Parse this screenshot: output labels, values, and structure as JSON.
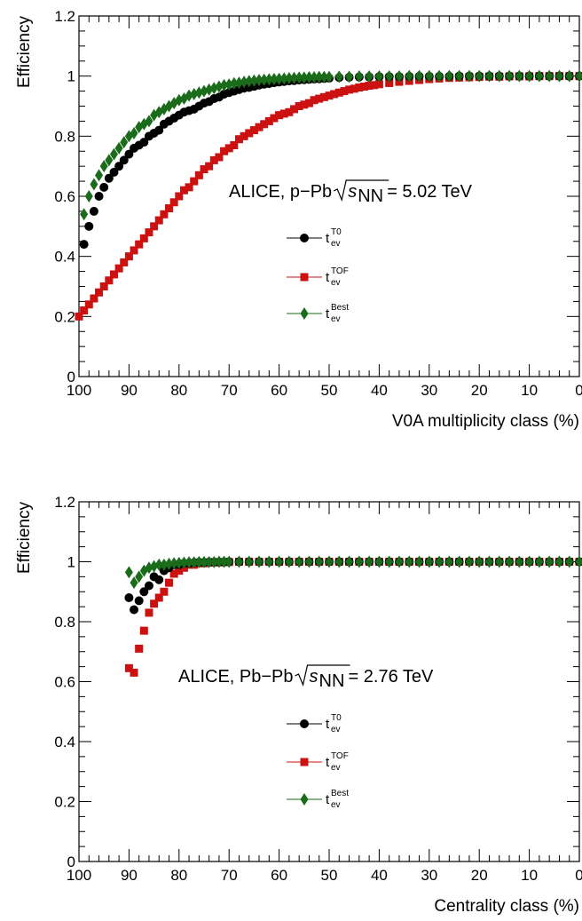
{
  "chart_data": [
    {
      "type": "scatter",
      "annotation": {
        "prefix": "ALICE, p−Pb ",
        "sqrt": "s",
        "sub": "NN",
        "suffix": " = 5.02 TeV"
      },
      "xlabel": "V0A multiplicity class (%)",
      "ylabel": "Efficiency",
      "xlim": [
        100,
        0
      ],
      "ylim": [
        0,
        1.2
      ],
      "x_reversed": true,
      "x_ticks": [
        "100",
        "90",
        "80",
        "70",
        "60",
        "50",
        "40",
        "30",
        "20",
        "10",
        "0"
      ],
      "y_ticks": [
        "0",
        "0.2",
        "0.4",
        "0.6",
        "0.8",
        "1",
        "1.2"
      ],
      "legend": {
        "placement": "center"
      },
      "series": [
        {
          "name": "t_ev^T0",
          "label_main": "t",
          "label_sub": "ev",
          "label_sup": "T0",
          "color": "#000000",
          "marker": "circle",
          "x": [
            99,
            98,
            97,
            96,
            95,
            94,
            93,
            92,
            91,
            90,
            89,
            88,
            87,
            86,
            85,
            84,
            83,
            82,
            81,
            80,
            79,
            78,
            77,
            76,
            75,
            74,
            73,
            72,
            71,
            70,
            69,
            68,
            67,
            66,
            65,
            64,
            63,
            62,
            61,
            60,
            59,
            58,
            57,
            56,
            55,
            54,
            53,
            52,
            51,
            50,
            48,
            46,
            44,
            42,
            40,
            38,
            36,
            34,
            32,
            30,
            28,
            26,
            24,
            22,
            20,
            18,
            16,
            14,
            12,
            10,
            8,
            6,
            4,
            2,
            0
          ],
          "y": [
            0.44,
            0.5,
            0.55,
            0.6,
            0.63,
            0.66,
            0.68,
            0.7,
            0.72,
            0.74,
            0.76,
            0.77,
            0.78,
            0.8,
            0.81,
            0.82,
            0.84,
            0.85,
            0.86,
            0.87,
            0.88,
            0.885,
            0.89,
            0.9,
            0.91,
            0.915,
            0.925,
            0.93,
            0.94,
            0.945,
            0.95,
            0.955,
            0.96,
            0.962,
            0.966,
            0.97,
            0.973,
            0.975,
            0.978,
            0.98,
            0.982,
            0.984,
            0.985,
            0.987,
            0.988,
            0.989,
            0.99,
            0.991,
            0.992,
            0.993,
            0.995,
            0.996,
            0.997,
            0.997,
            0.998,
            0.998,
            0.998,
            0.999,
            0.999,
            0.999,
            0.999,
            0.999,
            1.0,
            1.0,
            1.0,
            1.0,
            1.0,
            1.0,
            1.0,
            1.0,
            1.0,
            1.0,
            1.0,
            1.0,
            1.0
          ]
        },
        {
          "name": "t_ev^TOF",
          "label_main": "t",
          "label_sub": "ev",
          "label_sup": "TOF",
          "color": "#cc1111",
          "marker": "square",
          "x": [
            100,
            99,
            98,
            97,
            96,
            95,
            94,
            93,
            92,
            91,
            90,
            89,
            88,
            87,
            86,
            85,
            84,
            83,
            82,
            81,
            80,
            79,
            78,
            77,
            76,
            75,
            74,
            73,
            72,
            71,
            70,
            69,
            68,
            67,
            66,
            65,
            64,
            63,
            62,
            61,
            60,
            59,
            58,
            57,
            56,
            55,
            54,
            53,
            52,
            51,
            50,
            49,
            48,
            47,
            46,
            45,
            44,
            43,
            42,
            41,
            40,
            38,
            36,
            34,
            32,
            30,
            28,
            26,
            24,
            22,
            20,
            18,
            16,
            14,
            12,
            10,
            8,
            6,
            4,
            2,
            0
          ],
          "y": [
            0.2,
            0.22,
            0.24,
            0.26,
            0.28,
            0.3,
            0.32,
            0.34,
            0.36,
            0.38,
            0.4,
            0.42,
            0.44,
            0.46,
            0.48,
            0.5,
            0.52,
            0.54,
            0.56,
            0.58,
            0.6,
            0.62,
            0.63,
            0.65,
            0.67,
            0.69,
            0.7,
            0.72,
            0.73,
            0.75,
            0.76,
            0.77,
            0.79,
            0.8,
            0.81,
            0.82,
            0.83,
            0.84,
            0.85,
            0.86,
            0.87,
            0.875,
            0.88,
            0.89,
            0.9,
            0.905,
            0.91,
            0.92,
            0.925,
            0.93,
            0.935,
            0.94,
            0.945,
            0.95,
            0.955,
            0.958,
            0.962,
            0.965,
            0.968,
            0.97,
            0.973,
            0.977,
            0.981,
            0.984,
            0.987,
            0.99,
            0.992,
            0.994,
            0.995,
            0.996,
            0.997,
            0.998,
            0.998,
            0.999,
            0.999,
            0.999,
            1.0,
            1.0,
            1.0,
            1.0,
            1.0
          ]
        },
        {
          "name": "t_ev^Best",
          "label_main": "t",
          "label_sub": "ev",
          "label_sup": "Best",
          "color": "#1a6b1a",
          "marker": "diamond",
          "x": [
            99,
            98,
            97,
            96,
            95,
            94,
            93,
            92,
            91,
            90,
            89,
            88,
            87,
            86,
            85,
            84,
            83,
            82,
            81,
            80,
            79,
            78,
            77,
            76,
            75,
            74,
            73,
            72,
            71,
            70,
            69,
            68,
            67,
            66,
            65,
            64,
            63,
            62,
            61,
            60,
            59,
            58,
            57,
            56,
            55,
            54,
            53,
            52,
            51,
            50,
            48,
            46,
            44,
            42,
            40,
            38,
            36,
            34,
            32,
            30,
            28,
            26,
            24,
            22,
            20,
            18,
            16,
            14,
            12,
            10,
            8,
            6,
            4,
            2,
            0
          ],
          "y": [
            0.54,
            0.6,
            0.64,
            0.67,
            0.7,
            0.72,
            0.74,
            0.76,
            0.78,
            0.8,
            0.81,
            0.83,
            0.84,
            0.85,
            0.87,
            0.88,
            0.89,
            0.9,
            0.91,
            0.92,
            0.925,
            0.935,
            0.94,
            0.945,
            0.95,
            0.955,
            0.96,
            0.965,
            0.97,
            0.972,
            0.976,
            0.978,
            0.981,
            0.983,
            0.985,
            0.987,
            0.988,
            0.989,
            0.99,
            0.991,
            0.992,
            0.993,
            0.994,
            0.995,
            0.995,
            0.996,
            0.996,
            0.997,
            0.997,
            0.997,
            0.998,
            0.998,
            0.999,
            0.999,
            0.999,
            0.999,
            0.999,
            1.0,
            1.0,
            1.0,
            1.0,
            1.0,
            1.0,
            1.0,
            1.0,
            1.0,
            1.0,
            1.0,
            1.0,
            1.0,
            1.0,
            1.0,
            1.0,
            1.0,
            1.0
          ]
        }
      ]
    },
    {
      "type": "scatter",
      "annotation": {
        "prefix": "ALICE, Pb−Pb ",
        "sqrt": "s",
        "sub": "NN",
        "suffix": " = 2.76 TeV"
      },
      "xlabel": "Centrality class (%)",
      "ylabel": "Efficiency",
      "xlim": [
        100,
        0
      ],
      "ylim": [
        0,
        1.2
      ],
      "x_reversed": true,
      "x_ticks": [
        "100",
        "90",
        "80",
        "70",
        "60",
        "50",
        "40",
        "30",
        "20",
        "10",
        "0"
      ],
      "y_ticks": [
        "0",
        "0.2",
        "0.4",
        "0.6",
        "0.8",
        "1",
        "1.2"
      ],
      "legend": {
        "placement": "center"
      },
      "series": [
        {
          "name": "t_ev^T0",
          "label_main": "t",
          "label_sub": "ev",
          "label_sup": "T0",
          "color": "#000000",
          "marker": "circle",
          "x": [
            90,
            89,
            88,
            87,
            86,
            85,
            84,
            83,
            82,
            81,
            80,
            79,
            78,
            77,
            76,
            75,
            74,
            73,
            72,
            71,
            70,
            68,
            66,
            64,
            62,
            60,
            58,
            56,
            54,
            52,
            50,
            48,
            46,
            44,
            42,
            40,
            38,
            36,
            34,
            32,
            30,
            28,
            26,
            24,
            22,
            20,
            18,
            16,
            14,
            12,
            10,
            8,
            6,
            4,
            2,
            0
          ],
          "y": [
            0.88,
            0.84,
            0.87,
            0.9,
            0.92,
            0.95,
            0.94,
            0.97,
            0.98,
            0.99,
            0.99,
            0.995,
            0.995,
            0.997,
            0.998,
            0.998,
            0.999,
            0.999,
            0.999,
            0.999,
            1.0,
            1.0,
            1.0,
            1.0,
            1.0,
            1.0,
            1.0,
            1.0,
            1.0,
            1.0,
            1.0,
            1.0,
            1.0,
            1.0,
            1.0,
            1.0,
            1.0,
            1.0,
            1.0,
            1.0,
            1.0,
            1.0,
            1.0,
            1.0,
            1.0,
            1.0,
            1.0,
            1.0,
            1.0,
            1.0,
            1.0,
            1.0,
            1.0,
            1.0,
            1.0,
            1.0
          ]
        },
        {
          "name": "t_ev^TOF",
          "label_main": "t",
          "label_sub": "ev",
          "label_sup": "TOF",
          "color": "#cc1111",
          "marker": "square",
          "x": [
            90,
            89,
            88,
            87,
            86,
            85,
            84,
            83,
            82,
            81,
            80,
            79,
            78,
            77,
            76,
            75,
            74,
            73,
            72,
            71,
            70,
            68,
            66,
            64,
            62,
            60,
            58,
            56,
            54,
            52,
            50,
            48,
            46,
            44,
            42,
            40,
            38,
            36,
            34,
            32,
            30,
            28,
            26,
            24,
            22,
            20,
            18,
            16,
            14,
            12,
            10,
            8,
            6,
            4,
            2,
            0
          ],
          "y": [
            0.645,
            0.63,
            0.71,
            0.77,
            0.83,
            0.86,
            0.88,
            0.9,
            0.93,
            0.96,
            0.97,
            0.98,
            0.99,
            0.99,
            0.995,
            0.995,
            0.997,
            0.998,
            0.998,
            0.999,
            0.999,
            1.0,
            1.0,
            1.0,
            1.0,
            1.0,
            1.0,
            1.0,
            1.0,
            1.0,
            1.0,
            1.0,
            1.0,
            1.0,
            1.0,
            1.0,
            1.0,
            1.0,
            1.0,
            1.0,
            1.0,
            1.0,
            1.0,
            1.0,
            1.0,
            1.0,
            1.0,
            1.0,
            1.0,
            1.0,
            1.0,
            1.0,
            1.0,
            1.0,
            1.0,
            1.0
          ]
        },
        {
          "name": "t_ev^Best",
          "label_main": "t",
          "label_sub": "ev",
          "label_sup": "Best",
          "color": "#1a6b1a",
          "marker": "diamond",
          "x": [
            90,
            89,
            88,
            87,
            86,
            85,
            84,
            83,
            82,
            81,
            80,
            79,
            78,
            77,
            76,
            75,
            74,
            73,
            72,
            71,
            70,
            68,
            66,
            64,
            62,
            60,
            58,
            56,
            54,
            52,
            50,
            48,
            46,
            44,
            42,
            40,
            38,
            36,
            34,
            32,
            30,
            28,
            26,
            24,
            22,
            20,
            18,
            16,
            14,
            12,
            10,
            8,
            6,
            4,
            2,
            0
          ],
          "y": [
            0.965,
            0.93,
            0.95,
            0.97,
            0.98,
            0.985,
            0.99,
            0.99,
            0.993,
            0.995,
            0.996,
            0.997,
            0.998,
            0.998,
            0.999,
            0.999,
            0.999,
            0.999,
            1.0,
            1.0,
            1.0,
            1.0,
            1.0,
            1.0,
            1.0,
            1.0,
            1.0,
            1.0,
            1.0,
            1.0,
            1.0,
            1.0,
            1.0,
            1.0,
            1.0,
            1.0,
            1.0,
            1.0,
            1.0,
            1.0,
            1.0,
            1.0,
            1.0,
            1.0,
            1.0,
            1.0,
            1.0,
            1.0,
            1.0,
            1.0,
            1.0,
            1.0,
            1.0,
            1.0,
            1.0,
            1.0
          ]
        }
      ]
    }
  ]
}
